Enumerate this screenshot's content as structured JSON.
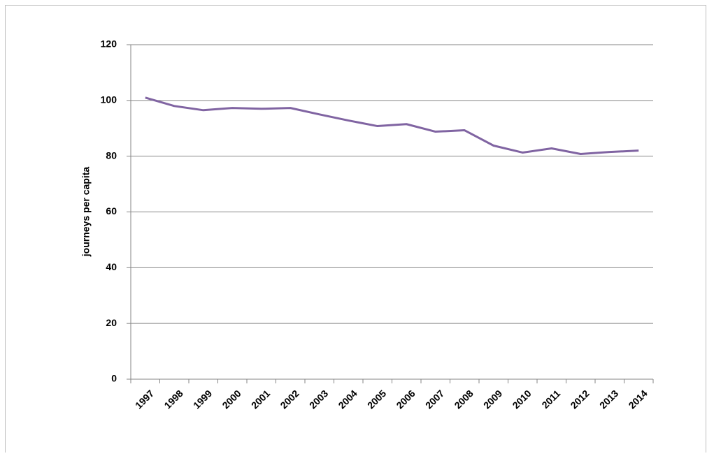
{
  "chart_data": {
    "type": "line",
    "y_label": "journeys per capita",
    "categories": [
      "1997",
      "1998",
      "1999",
      "2000",
      "2001",
      "2002",
      "2003",
      "2004",
      "2005",
      "2006",
      "2007",
      "2008",
      "2009",
      "2010",
      "2011",
      "2012",
      "2013",
      "2014"
    ],
    "series": [
      {
        "color": "#8064a2",
        "values": [
          101,
          98,
          96.5,
          97.3,
          97,
          97.3,
          95,
          92.8,
          90.8,
          91.5,
          88.8,
          89.3,
          83.8,
          81.3,
          82.8,
          80.8,
          81.5,
          82
        ]
      }
    ],
    "ylim": [
      0,
      120
    ],
    "yticks": [
      0,
      20,
      40,
      60,
      80,
      100,
      120
    ],
    "grid": true
  }
}
